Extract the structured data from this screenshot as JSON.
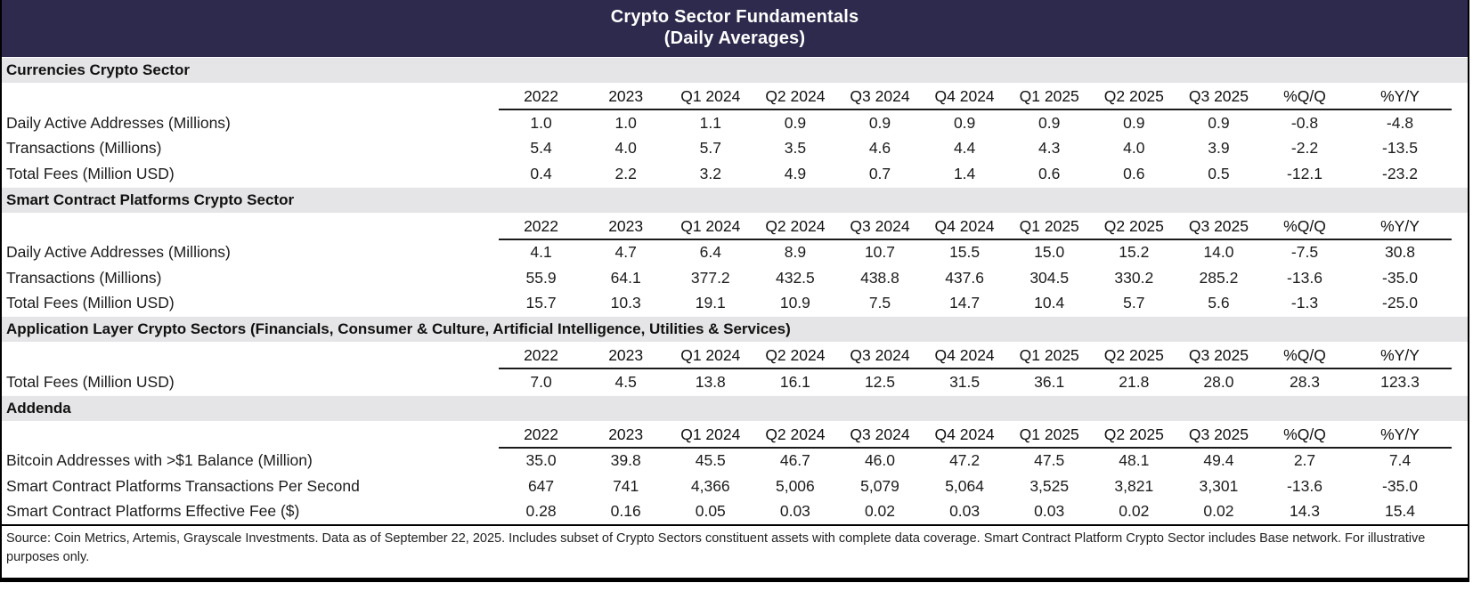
{
  "chart_data": {
    "type": "table",
    "title": "Crypto Sector Fundamentals",
    "subtitle": "(Daily Averages)",
    "columns": [
      "2022",
      "2023",
      "Q1 2024",
      "Q2 2024",
      "Q3 2024",
      "Q4 2024",
      "Q1 2025",
      "Q2 2025",
      "Q3 2025",
      "%Q/Q",
      "%Y/Y"
    ],
    "sections": [
      {
        "name": "Currencies Crypto Sector",
        "rows": [
          {
            "label": "Daily Active Addresses (Millions)",
            "values": [
              "1.0",
              "1.0",
              "1.1",
              "0.9",
              "0.9",
              "0.9",
              "0.9",
              "0.9",
              "0.9",
              "-0.8",
              "-4.8"
            ]
          },
          {
            "label": "Transactions (Millions)",
            "values": [
              "5.4",
              "4.0",
              "5.7",
              "3.5",
              "4.6",
              "4.4",
              "4.3",
              "4.0",
              "3.9",
              "-2.2",
              "-13.5"
            ]
          },
          {
            "label": "Total Fees (Million USD)",
            "values": [
              "0.4",
              "2.2",
              "3.2",
              "4.9",
              "0.7",
              "1.4",
              "0.6",
              "0.6",
              "0.5",
              "-12.1",
              "-23.2"
            ]
          }
        ]
      },
      {
        "name": "Smart Contract Platforms Crypto Sector",
        "rows": [
          {
            "label": "Daily Active Addresses (Millions)",
            "values": [
              "4.1",
              "4.7",
              "6.4",
              "8.9",
              "10.7",
              "15.5",
              "15.0",
              "15.2",
              "14.0",
              "-7.5",
              "30.8"
            ]
          },
          {
            "label": "Transactions (Millions)",
            "values": [
              "55.9",
              "64.1",
              "377.2",
              "432.5",
              "438.8",
              "437.6",
              "304.5",
              "330.2",
              "285.2",
              "-13.6",
              "-35.0"
            ]
          },
          {
            "label": "Total Fees (Million USD)",
            "values": [
              "15.7",
              "10.3",
              "19.1",
              "10.9",
              "7.5",
              "14.7",
              "10.4",
              "5.7",
              "5.6",
              "-1.3",
              "-25.0"
            ]
          }
        ]
      },
      {
        "name": "Application Layer Crypto Sectors (Financials, Consumer & Culture, Artificial Intelligence, Utilities & Services)",
        "rows": [
          {
            "label": "Total Fees (Million USD)",
            "values": [
              "7.0",
              "4.5",
              "13.8",
              "16.1",
              "12.5",
              "31.5",
              "36.1",
              "21.8",
              "28.0",
              "28.3",
              "123.3"
            ]
          }
        ]
      },
      {
        "name": "Addenda",
        "rows": [
          {
            "label": "Bitcoin Addresses with >$1 Balance (Million)",
            "values": [
              "35.0",
              "39.8",
              "45.5",
              "46.7",
              "46.0",
              "47.2",
              "47.5",
              "48.1",
              "49.4",
              "2.7",
              "7.4"
            ]
          },
          {
            "label": "Smart Contract Platforms Transactions Per Second",
            "values": [
              "647",
              "741",
              "4,366",
              "5,006",
              "5,079",
              "5,064",
              "3,525",
              "3,821",
              "3,301",
              "-13.6",
              "-35.0"
            ]
          },
          {
            "label": "Smart Contract Platforms Effective Fee ($)",
            "values": [
              "0.28",
              "0.16",
              "0.05",
              "0.03",
              "0.02",
              "0.03",
              "0.03",
              "0.02",
              "0.02",
              "14.3",
              "15.4"
            ]
          }
        ]
      }
    ],
    "footnote": "Source: Coin Metrics, Artemis, Grayscale Investments. Data as of September 22, 2025. Includes subset of Crypto Sectors constituent assets with complete data coverage. Smart Contract Platform Crypto Sector includes Base network. For illustrative purposes only.",
    "colors": {
      "title_band_bg": "#2e2a4e",
      "title_text": "#ffffff",
      "section_band_bg": "#e5e4e6",
      "body_text": "#1c1c1c"
    },
    "layout": {
      "grid": false,
      "legend": "none",
      "header_underline": true
    }
  }
}
